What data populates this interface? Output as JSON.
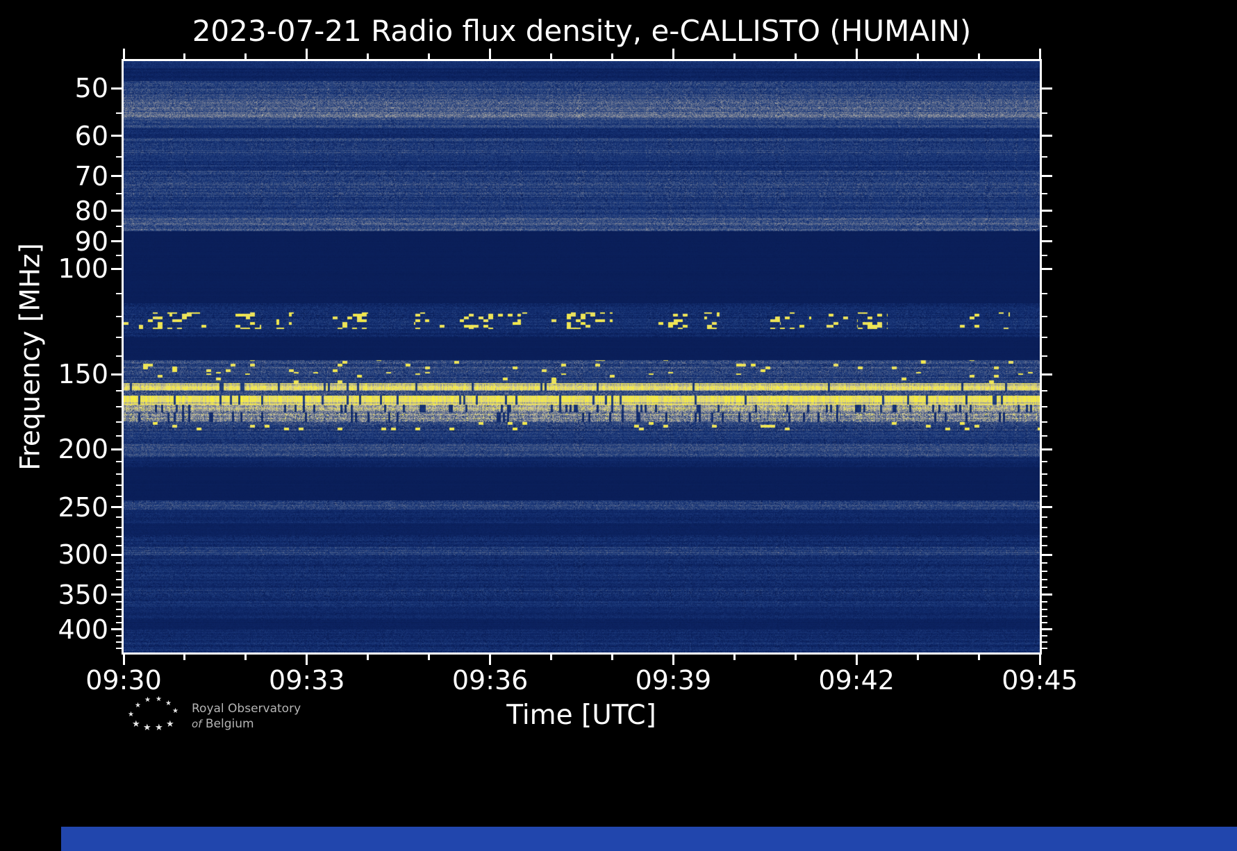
{
  "page": {
    "background": "#000000",
    "strip_color": "#2146ad"
  },
  "footer": {
    "logo_line1": "Royal Observatory",
    "logo_line2_italic": "of",
    "logo_line2": "Belgium"
  },
  "chart_data": {
    "type": "heatmap",
    "title": "2023-07-21 Radio flux density, e-CALLISTO (HUMAIN)",
    "date": "2023-07-21",
    "instrument": "e-CALLISTO",
    "station": "HUMAIN",
    "xlabel": "Time [UTC]",
    "ylabel": "Frequency [MHz]",
    "x_ticks": [
      "09:30",
      "09:33",
      "09:36",
      "09:39",
      "09:42",
      "09:45"
    ],
    "x_major_interval_minutes": 3,
    "x_minor_interval_minutes": 1,
    "x_range_minutes": [
      0,
      15
    ],
    "y_scale": "log",
    "y_range_mhz": [
      45,
      437
    ],
    "y_ticks": [
      50,
      60,
      70,
      80,
      90,
      100,
      150,
      200,
      250,
      300,
      350,
      400
    ],
    "y_minor_ticks": [
      55,
      65,
      75,
      85,
      95,
      110,
      120,
      130,
      140,
      160,
      170,
      180,
      190,
      210,
      220,
      230,
      240,
      260,
      270,
      280,
      290,
      310,
      320,
      330,
      340,
      360,
      370,
      380,
      390,
      410,
      420,
      430
    ],
    "grid": false,
    "legend": "none",
    "colormap": [
      [
        0.0,
        [
          8,
          26,
          80
        ]
      ],
      [
        0.12,
        [
          14,
          38,
          102
        ]
      ],
      [
        0.25,
        [
          28,
          58,
          124
        ]
      ],
      [
        0.42,
        [
          72,
          92,
          136
        ]
      ],
      [
        0.56,
        [
          126,
          131,
          150
        ]
      ],
      [
        0.7,
        [
          180,
          178,
          168
        ]
      ],
      [
        0.82,
        [
          226,
          216,
          128
        ]
      ],
      [
        1.0,
        [
          250,
          240,
          55
        ]
      ]
    ],
    "bands": [
      {
        "f0": 45.0,
        "f1": 46.2,
        "level": 0.2,
        "noise": 0.06
      },
      {
        "f0": 46.2,
        "f1": 48.5,
        "level": 0.1,
        "noise": 0.05
      },
      {
        "f0": 48.5,
        "f1": 52.0,
        "level": 0.3,
        "noise": 0.15
      },
      {
        "f0": 52.0,
        "f1": 56.0,
        "level": 0.43,
        "noise": 0.18
      },
      {
        "f0": 56.0,
        "f1": 58.0,
        "level": 0.3,
        "noise": 0.13
      },
      {
        "f0": 58.0,
        "f1": 60.5,
        "level": 0.15,
        "noise": 0.08
      },
      {
        "f0": 60.5,
        "f1": 64.5,
        "level": 0.27,
        "noise": 0.13
      },
      {
        "f0": 64.5,
        "f1": 68.5,
        "level": 0.2,
        "noise": 0.1
      },
      {
        "f0": 68.5,
        "f1": 76.5,
        "level": 0.29,
        "noise": 0.15
      },
      {
        "f0": 76.5,
        "f1": 82.0,
        "level": 0.24,
        "noise": 0.12
      },
      {
        "f0": 82.0,
        "f1": 86.5,
        "level": 0.35,
        "noise": 0.16
      },
      {
        "f0": 86.5,
        "f1": 114.0,
        "level": 0.055,
        "noise": 0.012
      },
      {
        "f0": 114.0,
        "f1": 118.0,
        "level": 0.14,
        "noise": 0.09
      },
      {
        "f0": 118.0,
        "f1": 126.0,
        "level": 0.17,
        "noise": 0.11,
        "speckle": 0.5,
        "blip": true
      },
      {
        "f0": 126.0,
        "f1": 130.0,
        "level": 0.13,
        "noise": 0.08
      },
      {
        "f0": 130.0,
        "f1": 142.0,
        "level": 0.055,
        "noise": 0.012
      },
      {
        "f0": 142.0,
        "f1": 149.5,
        "level": 0.3,
        "noise": 0.17,
        "speckle": 0.06
      },
      {
        "f0": 149.5,
        "f1": 155.0,
        "level": 0.26,
        "noise": 0.15,
        "speckle": 0.05
      },
      {
        "f0": 155.0,
        "f1": 159.5,
        "level": 0.85,
        "noise": 0.12,
        "darkCols": 0.05
      },
      {
        "f0": 159.5,
        "f1": 162.5,
        "level": 0.4,
        "noise": 0.2
      },
      {
        "f0": 162.5,
        "f1": 168.5,
        "level": 0.9,
        "noise": 0.09,
        "darkCols": 0.08
      },
      {
        "f0": 168.5,
        "f1": 173.5,
        "level": 0.68,
        "noise": 0.2,
        "darkCols": 0.12
      },
      {
        "f0": 173.5,
        "f1": 180.0,
        "level": 0.55,
        "noise": 0.24,
        "darkCols": 0.1
      },
      {
        "f0": 180.0,
        "f1": 186.0,
        "level": 0.3,
        "noise": 0.18,
        "speckle": 0.08
      },
      {
        "f0": 186.0,
        "f1": 195.0,
        "level": 0.22,
        "noise": 0.12
      },
      {
        "f0": 195.0,
        "f1": 206.0,
        "level": 0.3,
        "noise": 0.14
      },
      {
        "f0": 206.0,
        "f1": 214.0,
        "level": 0.12,
        "noise": 0.05
      },
      {
        "f0": 214.0,
        "f1": 243.0,
        "level": 0.055,
        "noise": 0.012
      },
      {
        "f0": 243.0,
        "f1": 252.0,
        "level": 0.28,
        "noise": 0.15
      },
      {
        "f0": 252.0,
        "f1": 266.0,
        "level": 0.14,
        "noise": 0.07
      },
      {
        "f0": 266.0,
        "f1": 278.0,
        "level": 0.08,
        "noise": 0.03
      },
      {
        "f0": 278.0,
        "f1": 291.0,
        "level": 0.16,
        "noise": 0.09
      },
      {
        "f0": 291.0,
        "f1": 301.0,
        "level": 0.26,
        "noise": 0.13
      },
      {
        "f0": 301.0,
        "f1": 317.0,
        "level": 0.16,
        "noise": 0.09
      },
      {
        "f0": 317.0,
        "f1": 328.0,
        "level": 0.19,
        "noise": 0.1
      },
      {
        "f0": 328.0,
        "f1": 341.0,
        "level": 0.15,
        "noise": 0.08
      },
      {
        "f0": 341.0,
        "f1": 353.0,
        "level": 0.22,
        "noise": 0.12
      },
      {
        "f0": 353.0,
        "f1": 368.0,
        "level": 0.16,
        "noise": 0.09
      },
      {
        "f0": 368.0,
        "f1": 385.0,
        "level": 0.13,
        "noise": 0.06
      },
      {
        "f0": 385.0,
        "f1": 400.0,
        "level": 0.085,
        "noise": 0.03
      },
      {
        "f0": 400.0,
        "f1": 416.0,
        "level": 0.14,
        "noise": 0.08
      },
      {
        "f0": 416.0,
        "f1": 437.01,
        "level": 0.16,
        "noise": 0.09
      }
    ]
  }
}
